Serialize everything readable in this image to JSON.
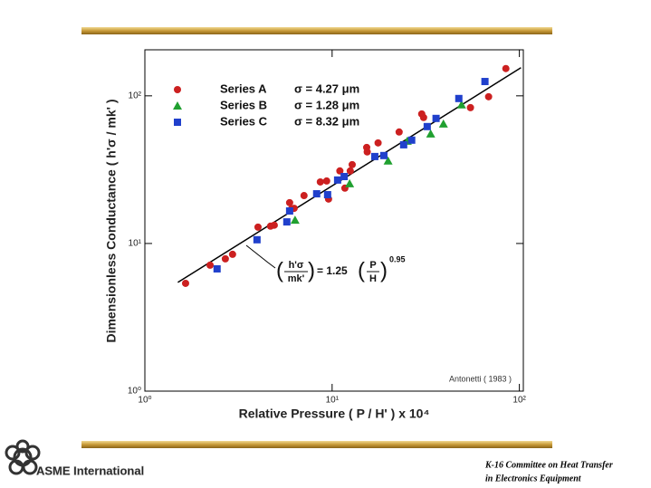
{
  "chart_data": {
    "type": "scatter",
    "xlabel": "Relative Pressure  ( P / H' ) x 10⁴",
    "ylabel": "Dimensionless Conductance  ( h'σ / mk' )",
    "xscale": "log",
    "yscale": "log",
    "xlim": [
      1,
      105
    ],
    "ylim": [
      1,
      205
    ],
    "xticks": [
      {
        "value": 1,
        "label": "10⁰"
      },
      {
        "value": 10,
        "label": "10¹"
      },
      {
        "value": 100,
        "label": "10²"
      }
    ],
    "yticks": [
      {
        "value": 1,
        "label": "10⁰"
      },
      {
        "value": 10,
        "label": "10¹"
      },
      {
        "value": 100,
        "label": "10²"
      }
    ],
    "series": [
      {
        "name": "Series A",
        "annotation": "σ = 4.27 μm",
        "color": "#cc2020",
        "marker": "circle",
        "x": [
          1.65,
          2.23,
          2.69,
          2.94,
          4.02,
          4.69,
          4.91,
          5.93,
          6.06,
          6.27,
          7.08,
          8.65,
          9.35,
          9.57,
          11.0,
          11.7,
          12.5,
          12.8,
          15.3,
          15.4,
          17.6,
          22.8,
          30.1,
          30.8,
          54.8,
          68.5,
          84.7
        ],
        "values": [
          5.37,
          7.13,
          7.87,
          8.44,
          12.9,
          13.1,
          13.3,
          18.9,
          17.1,
          17.3,
          21.1,
          26.1,
          26.5,
          20.0,
          31.0,
          23.7,
          31.0,
          34.2,
          44.7,
          41.7,
          48.0,
          56.9,
          75.4,
          71.3,
          83.2,
          98.6,
          153
        ]
      },
      {
        "name": "Series B",
        "annotation": "σ = 1.28 μm",
        "color": "#20a030",
        "marker": "triangle",
        "x": [
          6.34,
          12.4,
          19.9,
          25.2,
          33.6,
          39.3,
          49.1
        ],
        "values": [
          14.4,
          25.4,
          36.2,
          49.3,
          55.2,
          64.5,
          86.9
        ]
      },
      {
        "name": "Series C",
        "annotation": "σ = 8.32 μm",
        "color": "#2040cc",
        "marker": "square",
        "x": [
          2.43,
          3.97,
          5.73,
          5.93,
          8.27,
          9.46,
          10.7,
          11.6,
          16.9,
          18.9,
          24.1,
          26.6,
          32.2,
          35.9,
          47.5,
          65.5
        ],
        "values": [
          6.73,
          10.6,
          14.0,
          16.6,
          21.7,
          21.4,
          26.9,
          28.4,
          38.8,
          39.4,
          46.6,
          50.1,
          61.9,
          70.3,
          95.9,
          125
        ]
      }
    ],
    "fit": {
      "x": [
        1.5,
        102
      ],
      "values": [
        5.45,
        155
      ],
      "color": "#000000",
      "equation": {
        "lhs_num": "h'σ",
        "lhs_den": "mk'",
        "coef": "= 1.25",
        "rhs_num": "P",
        "rhs_den": "H",
        "exponent": "0.95"
      }
    },
    "annotations": [
      "Antonetti  ( 1983 )"
    ]
  },
  "page": {
    "logo_text": "ASME International",
    "footer": [
      "K-16 Committee on Heat Transfer",
      "in Electronics Equipment"
    ]
  }
}
